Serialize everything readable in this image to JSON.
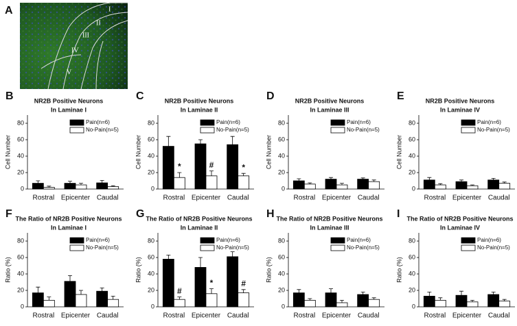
{
  "image_panel": {
    "panel": "A",
    "regions": [
      "I",
      "II",
      "III",
      "IV",
      "V"
    ]
  },
  "chart_data": [
    {
      "type": "bar",
      "panel": "B",
      "title_lines": [
        "NR2B Positive Neurons",
        "In Laminae I"
      ],
      "ylabel": "Cell Number",
      "categories": [
        "Rostral",
        "Epicenter",
        "Caudal"
      ],
      "ylim": [
        0,
        90
      ],
      "yticks": [
        0,
        20,
        40,
        60,
        80
      ],
      "series": [
        {
          "name": "Pain(n=6)",
          "color": "#000000",
          "values": [
            7,
            7,
            7.5
          ],
          "errors": [
            3,
            2.5,
            3
          ]
        },
        {
          "name": "No-Pain(n=5)",
          "color": "#ffffff",
          "values": [
            2,
            5,
            3
          ],
          "errors": [
            1.5,
            2,
            1
          ]
        }
      ]
    },
    {
      "type": "bar",
      "panel": "C",
      "title_lines": [
        "NR2B Positive Neurons",
        "In Laminae II"
      ],
      "ylabel": "Cell Number",
      "categories": [
        "Rostral",
        "Epicenter",
        "Caudal"
      ],
      "ylim": [
        0,
        90
      ],
      "yticks": [
        0,
        20,
        40,
        60,
        80
      ],
      "series": [
        {
          "name": "Pain(n=6)",
          "color": "#000000",
          "values": [
            52,
            55,
            54
          ],
          "errors": [
            12,
            5,
            10
          ]
        },
        {
          "name": "No-Pain(n=5)",
          "color": "#ffffff",
          "values": [
            14,
            16,
            16
          ],
          "errors": [
            6,
            6,
            3
          ],
          "markers": [
            "*",
            "#",
            "*"
          ]
        }
      ]
    },
    {
      "type": "bar",
      "panel": "D",
      "title_lines": [
        "NR2B Positive Neurons",
        "In Laminae III"
      ],
      "ylabel": "Cell Number",
      "categories": [
        "Rostral",
        "Epicenter",
        "Caudal"
      ],
      "ylim": [
        0,
        90
      ],
      "yticks": [
        0,
        20,
        40,
        60,
        80
      ],
      "series": [
        {
          "name": "Pain(n=6)",
          "color": "#000000",
          "values": [
            10,
            12,
            12
          ],
          "errors": [
            2.5,
            2,
            1.5
          ]
        },
        {
          "name": "No-Pain(n=5)",
          "color": "#ffffff",
          "values": [
            6,
            5,
            9
          ],
          "errors": [
            1.5,
            2,
            2
          ]
        }
      ]
    },
    {
      "type": "bar",
      "panel": "E",
      "title_lines": [
        "NR2B Positive Neurons",
        "In Laminae IV"
      ],
      "ylabel": "Cell Number",
      "categories": [
        "Rostral",
        "Epicenter",
        "Caudal"
      ],
      "ylim": [
        0,
        90
      ],
      "yticks": [
        0,
        20,
        40,
        60,
        80
      ],
      "series": [
        {
          "name": "Pain(n=6)",
          "color": "#000000",
          "values": [
            11,
            9,
            11
          ],
          "errors": [
            3,
            2,
            2
          ]
        },
        {
          "name": "No-Pain(n=5)",
          "color": "#ffffff",
          "values": [
            5,
            4,
            7
          ],
          "errors": [
            1.5,
            1,
            1.5
          ]
        }
      ]
    },
    {
      "type": "bar",
      "panel": "F",
      "title_lines": [
        "The Ratio of NR2B Positive Neurons",
        "In Laminae I"
      ],
      "ylabel": "Ratio (%)",
      "categories": [
        "Rostral",
        "Epicenter",
        "Caudal"
      ],
      "ylim": [
        0,
        90
      ],
      "yticks": [
        0,
        20,
        40,
        60,
        80
      ],
      "series": [
        {
          "name": "Pain(n=6)",
          "color": "#000000",
          "values": [
            17,
            31,
            19
          ],
          "errors": [
            7,
            7,
            4
          ]
        },
        {
          "name": "No-Pain(n=5)",
          "color": "#ffffff",
          "values": [
            8,
            15,
            9
          ],
          "errors": [
            4,
            5,
            4
          ]
        }
      ]
    },
    {
      "type": "bar",
      "panel": "G",
      "title_lines": [
        "The Ratio of NR2B Positive Neurons",
        "In Laminae II"
      ],
      "ylabel": "Ratio (%)",
      "categories": [
        "Rostral",
        "Epicenter",
        "Caudal"
      ],
      "ylim": [
        0,
        90
      ],
      "yticks": [
        0,
        20,
        40,
        60,
        80
      ],
      "series": [
        {
          "name": "Pain(n=6)",
          "color": "#000000",
          "values": [
            58,
            48,
            61
          ],
          "errors": [
            5,
            12,
            6
          ]
        },
        {
          "name": "No-Pain(n=5)",
          "color": "#ffffff",
          "values": [
            9,
            16,
            17
          ],
          "errors": [
            3,
            6,
            4
          ],
          "markers": [
            "#",
            "*",
            "#"
          ]
        }
      ]
    },
    {
      "type": "bar",
      "panel": "H",
      "title_lines": [
        "The Ratio of NR2B Positive Neurons",
        "In Laminae III"
      ],
      "ylabel": "Ratio (%)",
      "categories": [
        "Rostral",
        "Epicenter",
        "Caudal"
      ],
      "ylim": [
        0,
        90
      ],
      "yticks": [
        0,
        20,
        40,
        60,
        80
      ],
      "series": [
        {
          "name": "Pain(n=6)",
          "color": "#000000",
          "values": [
            17,
            17,
            15
          ],
          "errors": [
            4,
            5,
            3
          ]
        },
        {
          "name": "No-Pain(n=5)",
          "color": "#ffffff",
          "values": [
            8,
            5,
            9
          ],
          "errors": [
            2,
            3,
            2
          ]
        }
      ]
    },
    {
      "type": "bar",
      "panel": "I",
      "title_lines": [
        "The Ratio of NR2B Positive Neurons",
        "In Laminae IV"
      ],
      "ylabel": "Ratio (%)",
      "categories": [
        "Rostral",
        "Epicenter",
        "Caudal"
      ],
      "ylim": [
        0,
        90
      ],
      "yticks": [
        0,
        20,
        40,
        60,
        80
      ],
      "series": [
        {
          "name": "Pain(n=6)",
          "color": "#000000",
          "values": [
            13,
            14,
            15
          ],
          "errors": [
            5,
            5,
            3
          ]
        },
        {
          "name": "No-Pain(n=5)",
          "color": "#ffffff",
          "values": [
            8,
            6,
            7
          ],
          "errors": [
            3,
            2,
            2
          ]
        }
      ]
    }
  ]
}
